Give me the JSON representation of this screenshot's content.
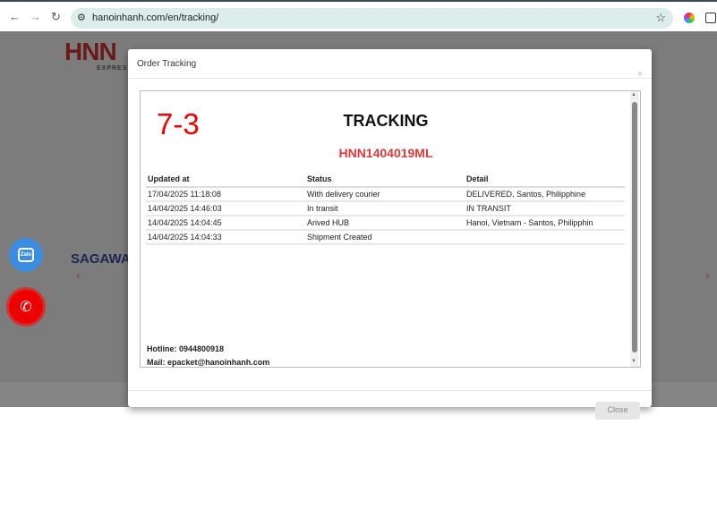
{
  "browser": {
    "url": "hanoinhanh.com/en/tracking/",
    "icons": [
      "back-icon",
      "forward-icon",
      "reload-icon",
      "site-settings-icon",
      "star-icon",
      "extension-icon"
    ]
  },
  "background": {
    "logo": "HNN",
    "logo_sub": "EXPRESS",
    "partner": "SAGAWA",
    "zalo_label": "Zalo"
  },
  "modal": {
    "title": "Order Tracking",
    "close_x": "×",
    "code": "7-3",
    "heading": "TRACKING",
    "tracking_number": "HNN1404019ML",
    "columns": [
      "Updated at",
      "Status",
      "Detail"
    ],
    "rows": [
      [
        "17/04/2025 11:18:08",
        "With delivery courier",
        "DELIVERED, Santos, Philipphine"
      ],
      [
        "14/04/2025 14:46:03",
        "In transit",
        "IN TRANSIT"
      ],
      [
        "14/04/2025 14:04:45",
        "Arived HUB",
        "Hanoi, Vietnam - Santos, Philipphin"
      ],
      [
        "14/04/2025 14:04:33",
        "Shipment Created",
        ""
      ]
    ],
    "hotline": "Hotline: 0944800918",
    "mail": "Mail: epacket@hanoinhanh.com",
    "close_button": "Close"
  },
  "colors": {
    "accent_red": "#e03a3a",
    "code_red": "#ee0000"
  }
}
